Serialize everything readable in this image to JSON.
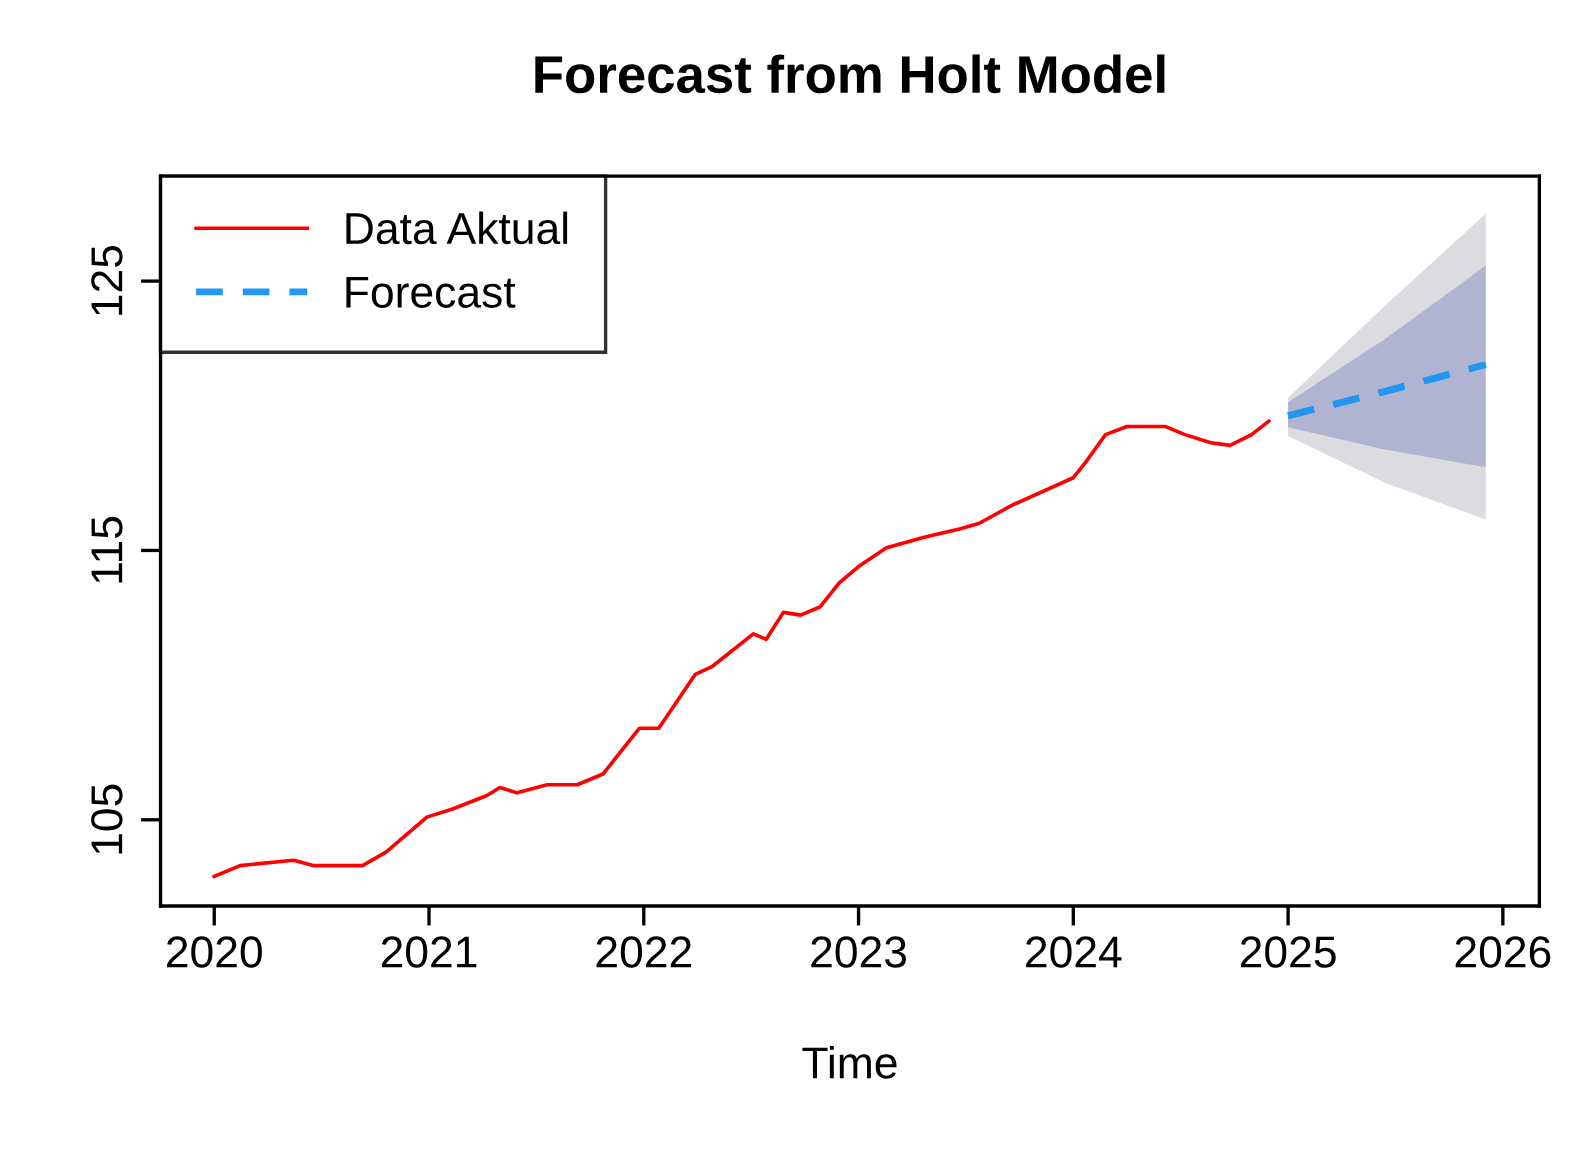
{
  "chart_data": {
    "type": "line",
    "title": "Forecast from Holt Model",
    "xlabel": "Time",
    "xlim": [
      2019.75,
      2026.17
    ],
    "ylim": [
      101.8,
      128.9
    ],
    "xticks": [
      2020,
      2021,
      2022,
      2023,
      2024,
      2025,
      2026
    ],
    "yticks": [
      105,
      115,
      125
    ],
    "grid": false,
    "legend": "top left",
    "series": [
      {
        "color": "#2196f3",
        "line_style": "dashed",
        "x": [
          2025.0,
          2025.45,
          2025.92
        ],
        "values": [
          120.0,
          120.9,
          121.9
        ],
        "lower": [
          119.25,
          117.51,
          116.15
        ],
        "upper": [
          120.67,
          124.08,
          127.5
        ]
      },
      {
        "name": "Data Aktual",
        "color": "#ff0000",
        "line_style": "solid",
        "x": [
          2020.0,
          2020.12,
          2020.37,
          2020.46,
          2020.69,
          2020.8,
          2020.99,
          2021.11,
          2021.27,
          2021.33,
          2021.41,
          2021.55,
          2021.69,
          2021.81,
          2021.98,
          2022.07,
          2022.24,
          2022.32,
          2022.51,
          2022.57,
          2022.65,
          2022.73,
          2022.82,
          2022.91,
          2023.0,
          2023.13,
          2023.31,
          2023.47,
          2023.56,
          2023.72,
          2024.0,
          2024.06,
          2024.15,
          2024.25,
          2024.43,
          2024.52,
          2024.64,
          2024.73,
          2024.83,
          2024.91
        ],
        "values": [
          102.9,
          103.3,
          103.5,
          103.3,
          103.3,
          103.8,
          105.1,
          105.4,
          105.9,
          106.2,
          106.0,
          106.3,
          106.3,
          106.7,
          108.4,
          108.4,
          110.4,
          110.7,
          111.9,
          111.7,
          112.7,
          112.6,
          112.9,
          113.8,
          114.4,
          115.1,
          115.5,
          115.8,
          116.0,
          116.7,
          117.7,
          118.3,
          119.3,
          119.6,
          119.6,
          119.3,
          119.0,
          118.9,
          119.3,
          119.8
        ]
      },
      {
        "name": "Forecast",
        "lower": [
          119.57,
          118.75,
          118.09
        ],
        "upper": [
          120.5,
          122.84,
          125.57
        ],
        "color": "#2196f3",
        "line_style": "dashed",
        "x": [
          2025.0,
          2025.45,
          2025.92
        ],
        "values": [
          120.0,
          120.9,
          121.9
        ]
      }
    ]
  }
}
